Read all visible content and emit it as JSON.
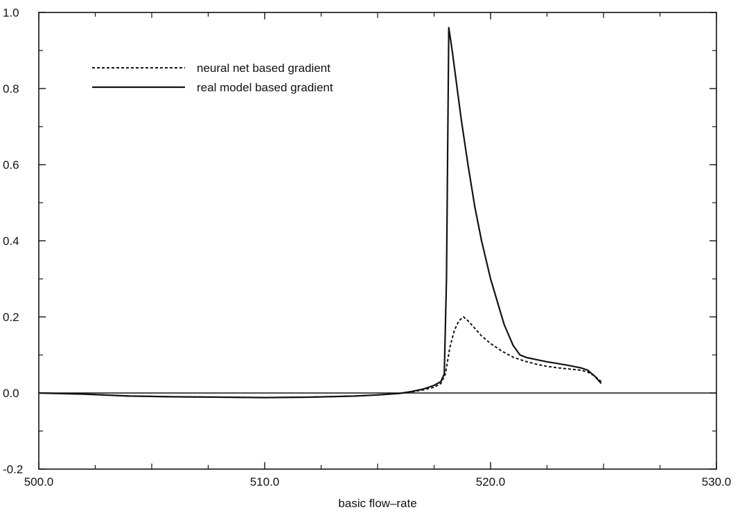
{
  "chart_data": {
    "type": "line",
    "title": "",
    "xlabel": "basic flow–rate",
    "ylabel": "",
    "xlim": [
      500.0,
      530.0
    ],
    "ylim": [
      -0.2,
      1.0
    ],
    "x_ticks": [
      500.0,
      510.0,
      520.0,
      530.0
    ],
    "x_tick_labels": [
      "500.0",
      "510.0",
      "520.0",
      "530.0"
    ],
    "y_ticks": [
      -0.2,
      0.0,
      0.2,
      0.4,
      0.6,
      0.8,
      1.0
    ],
    "y_tick_labels": [
      "-0.2",
      "0.0",
      "0.2",
      "0.4",
      "0.6",
      "0.8",
      "1.0"
    ],
    "grid": false,
    "legend_position": "top-left",
    "zero_line": true,
    "series": [
      {
        "name": "neural net based gradient",
        "style": "dashed",
        "color": "#111111",
        "x": [
          500.0,
          502.0,
          504.0,
          506.0,
          508.0,
          510.0,
          512.0,
          514.0,
          515.0,
          516.0,
          516.5,
          517.0,
          517.5,
          517.8,
          518.0,
          518.2,
          518.4,
          518.6,
          518.8,
          519.0,
          519.3,
          519.6,
          520.0,
          520.5,
          521.0,
          521.5,
          522.0,
          522.5,
          523.0,
          523.5,
          524.0,
          524.3,
          524.6,
          524.9
        ],
        "y": [
          0.0,
          -0.003,
          -0.008,
          -0.01,
          -0.011,
          -0.012,
          -0.011,
          -0.008,
          -0.005,
          -0.001,
          0.003,
          0.008,
          0.015,
          0.025,
          0.05,
          0.12,
          0.165,
          0.19,
          0.2,
          0.19,
          0.17,
          0.15,
          0.13,
          0.11,
          0.094,
          0.084,
          0.076,
          0.07,
          0.066,
          0.063,
          0.06,
          0.055,
          0.045,
          0.03
        ]
      },
      {
        "name": "real model based gradient",
        "style": "solid",
        "color": "#111111",
        "x": [
          500.0,
          502.0,
          504.0,
          506.0,
          508.0,
          510.0,
          512.0,
          514.0,
          515.0,
          516.0,
          516.5,
          517.0,
          517.5,
          517.8,
          517.95,
          518.05,
          518.15,
          518.3,
          518.5,
          518.7,
          519.0,
          519.3,
          519.6,
          520.0,
          520.3,
          520.6,
          521.0,
          521.3,
          521.6,
          522.0,
          522.5,
          523.0,
          523.5,
          524.0,
          524.3,
          524.6,
          524.9
        ],
        "y": [
          0.0,
          -0.003,
          -0.008,
          -0.01,
          -0.011,
          -0.012,
          -0.011,
          -0.008,
          -0.005,
          -0.001,
          0.004,
          0.01,
          0.02,
          0.03,
          0.05,
          0.3,
          0.96,
          0.9,
          0.81,
          0.72,
          0.6,
          0.49,
          0.4,
          0.3,
          0.24,
          0.18,
          0.125,
          0.1,
          0.093,
          0.088,
          0.082,
          0.077,
          0.072,
          0.066,
          0.06,
          0.045,
          0.025
        ]
      }
    ]
  }
}
